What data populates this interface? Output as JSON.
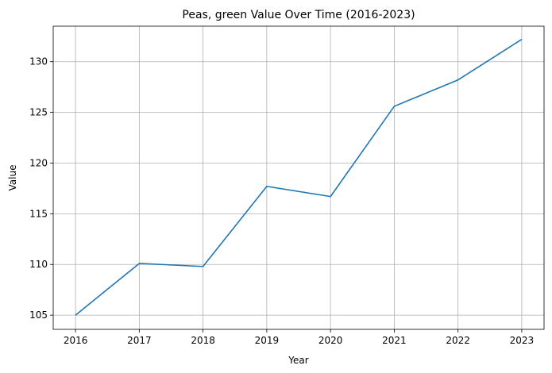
{
  "chart_data": {
    "type": "line",
    "title": "Peas, green Value Over Time (2016-2023)",
    "xlabel": "Year",
    "ylabel": "Value",
    "x": [
      2016,
      2017,
      2018,
      2019,
      2020,
      2021,
      2022,
      2023
    ],
    "series": [
      {
        "values": [
          105.0,
          110.1,
          109.8,
          117.7,
          116.7,
          125.6,
          128.2,
          132.2
        ]
      }
    ],
    "xlim": [
      2015.65,
      2023.35
    ],
    "ylim": [
      103.6,
      133.5
    ],
    "yticks": [
      105,
      110,
      115,
      120,
      125,
      130
    ],
    "grid": true,
    "legend": "none",
    "line_color": "#1f77b4"
  }
}
